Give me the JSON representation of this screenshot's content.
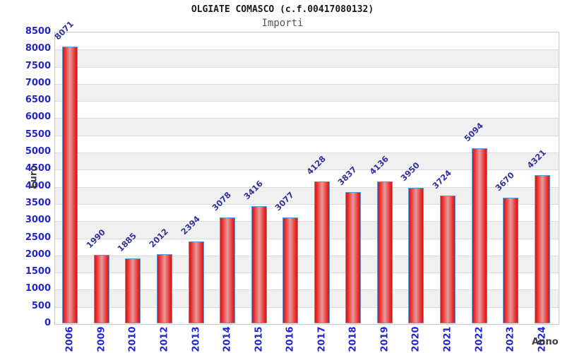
{
  "title": "OLGIATE COMASCO (c.f.00417080132)",
  "subtitle": "Importi",
  "chart_data": {
    "type": "bar",
    "title": "OLGIATE COMASCO (c.f.00417080132)",
    "subtitle": "Importi",
    "xlabel": "Anno",
    "ylabel": "Euro",
    "categories": [
      "2006",
      "2009",
      "2010",
      "2012",
      "2013",
      "2014",
      "2015",
      "2016",
      "2017",
      "2018",
      "2019",
      "2020",
      "2021",
      "2022",
      "2023",
      "2024"
    ],
    "values": [
      8071,
      1990,
      1885,
      2012,
      2394,
      3078,
      3416,
      3077,
      4128,
      3837,
      4136,
      3950,
      3724,
      5094,
      3670,
      4321
    ],
    "ylim": [
      0,
      8500
    ],
    "ytick_step": 500,
    "grid": true,
    "legend": "none",
    "value_labels_rotation_deg": -45,
    "xtick_rotation_deg": -90,
    "colors": {
      "title": "#1a1a1a",
      "subtitle": "#555555",
      "tick_label": "#2424cc",
      "value_label": "#32329b",
      "axis_title": "#3d3d3d",
      "bar_border": "#5b9ad5",
      "bar_edge": "#bf1d1d",
      "bar_bright": "#ee2c2c",
      "bar_center": "#e59c9c",
      "band_light": "#ffffff",
      "band_dark": "#f0f0f0",
      "gridline": "#dcdcdc",
      "frame": "#c8c8c8"
    }
  }
}
